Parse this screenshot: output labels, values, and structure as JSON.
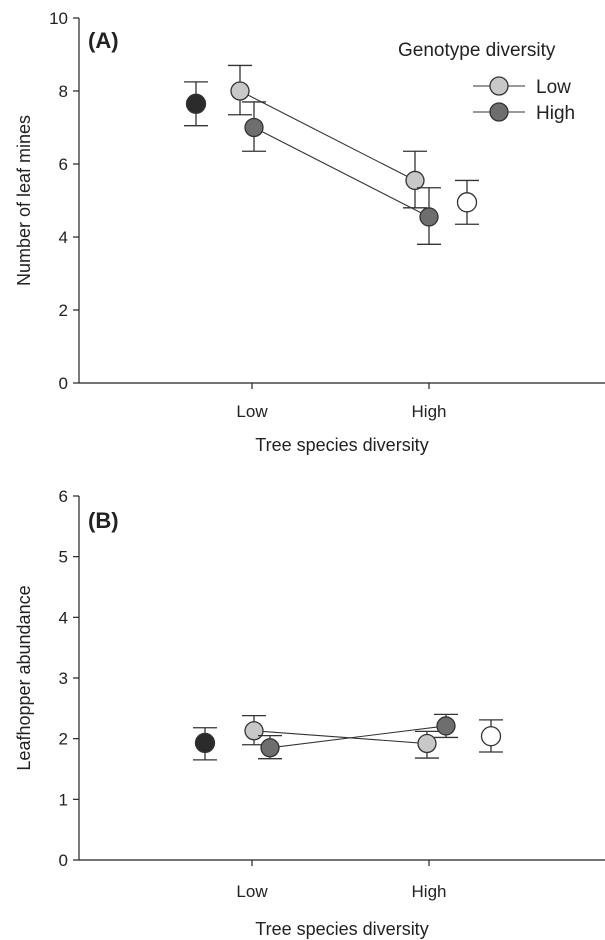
{
  "figure": {
    "colors": {
      "low_genotype": "#c8c8c8",
      "high_genotype": "#6e6e6e",
      "low_species_marginal": "#2b2b2b",
      "high_species_marginal": "#ffffff",
      "axis": "#222222"
    }
  },
  "chart_data": [
    {
      "type": "scatter",
      "panel_label": "(A)",
      "xlabel": "Tree species diversity",
      "ylabel": "Number of leaf mines",
      "categories": [
        "Low",
        "High"
      ],
      "ylim": [
        0,
        10
      ],
      "yticks": [
        0,
        2,
        4,
        6,
        8,
        10
      ],
      "legend": {
        "title": "Genotype diversity",
        "placement": "top-right",
        "entries": [
          "Low",
          "High"
        ]
      },
      "series": [
        {
          "name": "Low",
          "color": "#c8c8c8",
          "x": [
            "Low",
            "High"
          ],
          "values": [
            8.0,
            5.55
          ],
          "err_low": [
            7.35,
            4.8
          ],
          "err_high": [
            8.7,
            6.35
          ],
          "connected": true
        },
        {
          "name": "High",
          "color": "#6e6e6e",
          "x": [
            "Low",
            "High"
          ],
          "values": [
            7.0,
            4.55
          ],
          "err_low": [
            6.35,
            3.8
          ],
          "err_high": [
            7.7,
            5.35
          ],
          "connected": true
        }
      ],
      "marginal_means": [
        {
          "category": "Low",
          "color": "#2b2b2b",
          "value": 7.65,
          "err_low": 7.05,
          "err_high": 8.25
        },
        {
          "category": "High",
          "color": "#ffffff",
          "value": 4.95,
          "err_low": 4.35,
          "err_high": 5.55
        }
      ]
    },
    {
      "type": "scatter",
      "panel_label": "(B)",
      "xlabel": "Tree species diversity",
      "ylabel": "Leafhopper abundance",
      "categories": [
        "Low",
        "High"
      ],
      "ylim": [
        0,
        6
      ],
      "yticks": [
        0,
        1,
        2,
        3,
        4,
        5,
        6
      ],
      "series": [
        {
          "name": "Low",
          "color": "#c8c8c8",
          "x": [
            "Low",
            "High"
          ],
          "values": [
            2.13,
            1.92
          ],
          "err_low": [
            1.9,
            1.68
          ],
          "err_high": [
            2.38,
            2.12
          ],
          "connected": true
        },
        {
          "name": "High",
          "color": "#6e6e6e",
          "x": [
            "Low",
            "High"
          ],
          "values": [
            1.85,
            2.21
          ],
          "err_low": [
            1.67,
            2.02
          ],
          "err_high": [
            2.05,
            2.4
          ],
          "connected": true
        }
      ],
      "marginal_means": [
        {
          "category": "Low",
          "color": "#2b2b2b",
          "value": 1.93,
          "err_low": 1.65,
          "err_high": 2.18
        },
        {
          "category": "High",
          "color": "#ffffff",
          "value": 2.04,
          "err_low": 1.78,
          "err_high": 2.31
        }
      ]
    }
  ]
}
